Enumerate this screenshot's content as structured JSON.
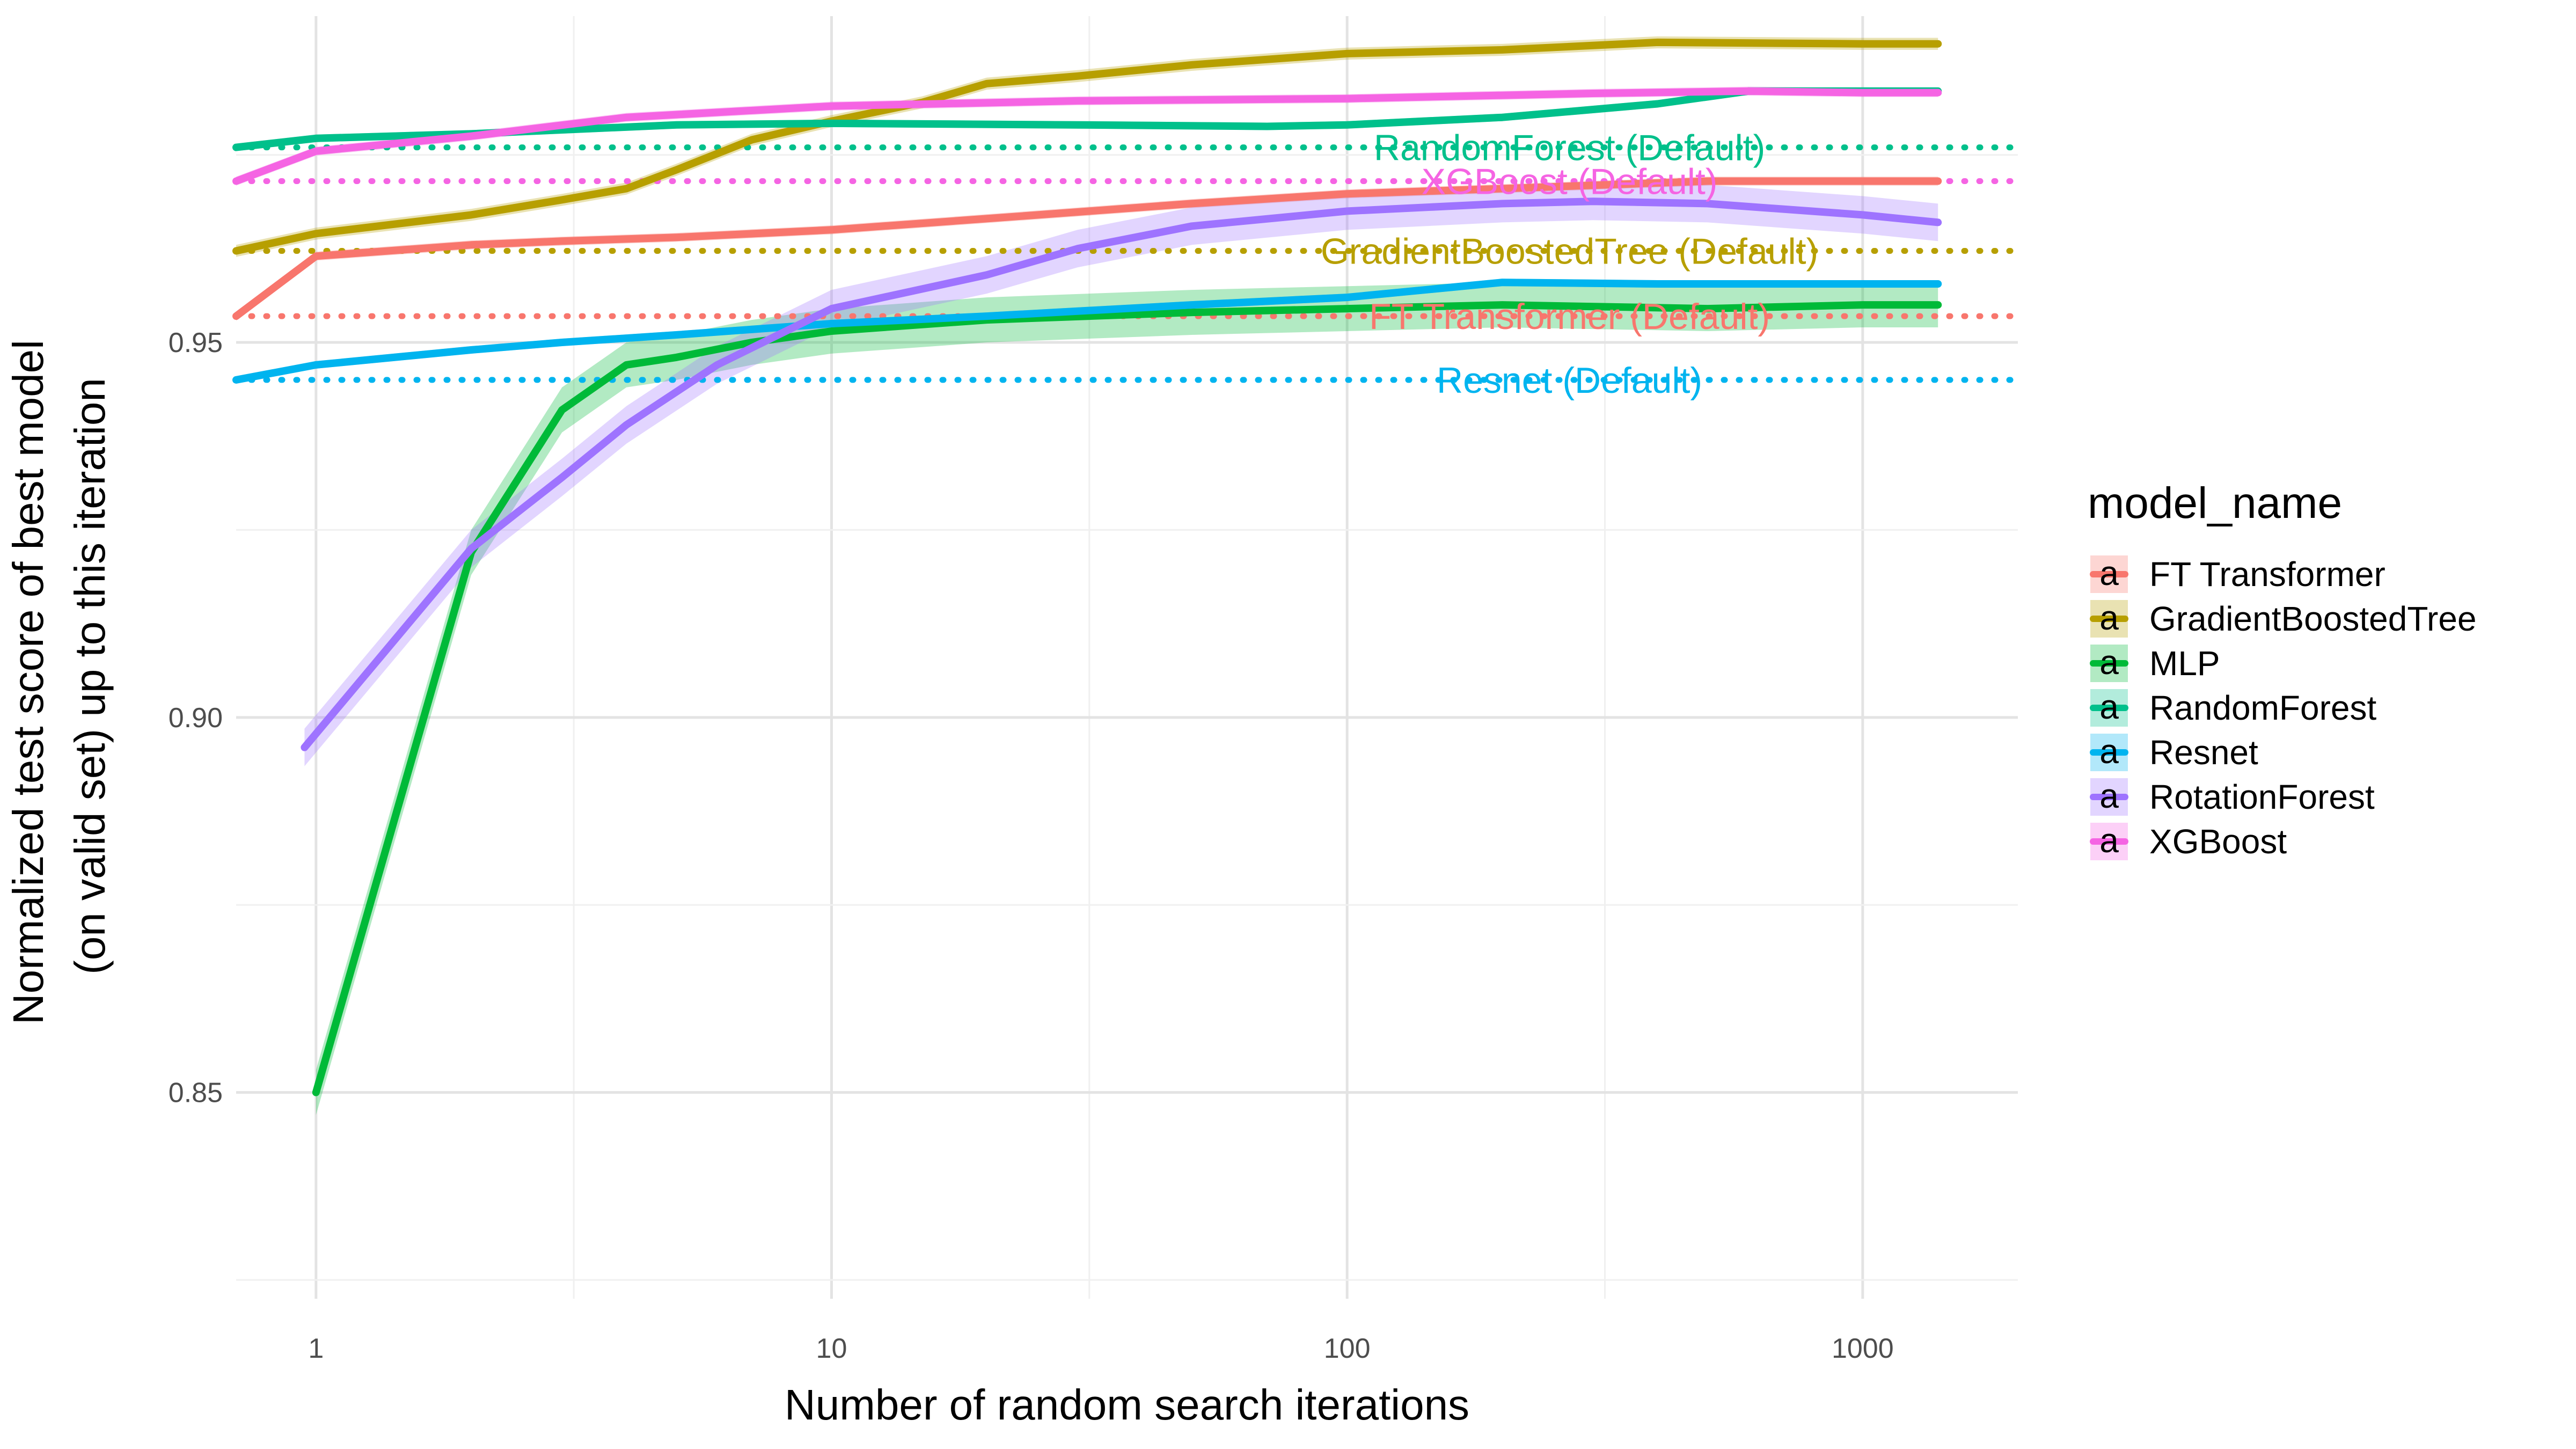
{
  "chart_data": {
    "type": "line",
    "xlabel": "Number of random search iterations",
    "ylabel_lines": [
      "Normalized test score of best model",
      "(on valid set) up to this iteration"
    ],
    "x_scale": "log",
    "xlim": [
      0.7,
      2000
    ],
    "ylim": [
      0.8225,
      0.9935
    ],
    "x_ticks": [
      {
        "value": 1,
        "label": "1"
      },
      {
        "value": 10,
        "label": "10"
      },
      {
        "value": 100,
        "label": "100"
      },
      {
        "value": 1000,
        "label": "1000"
      }
    ],
    "y_ticks": [
      {
        "value": 0.85,
        "label": "0.85"
      },
      {
        "value": 0.9,
        "label": "0.90"
      },
      {
        "value": 0.95,
        "label": "0.95"
      }
    ],
    "legend": {
      "title": "model_name",
      "position": "right",
      "glyph": "a"
    },
    "grid": true,
    "series": [
      {
        "name": "FT Transformer",
        "color": "#F8766D",
        "band_halfwidth": 0.0006,
        "default": {
          "value": 0.9535,
          "label": "FT Transformer (Default)",
          "label_x": 270
        },
        "x": [
          0.7,
          1,
          2,
          3,
          5,
          10,
          20,
          50,
          100,
          200,
          500,
          1000,
          1400
        ],
        "y": [
          0.9535,
          0.9615,
          0.963,
          0.9635,
          0.964,
          0.965,
          0.9665,
          0.9685,
          0.9698,
          0.9705,
          0.9715,
          0.9715,
          0.9715
        ]
      },
      {
        "name": "GradientBoostedTree",
        "color": "#B79F00",
        "band_halfwidth": 0.0008,
        "default": {
          "value": 0.9622,
          "label": "GradientBoostedTree (Default)",
          "label_x": 270
        },
        "x": [
          0.7,
          1,
          2,
          3,
          4,
          5,
          7,
          10,
          15,
          20,
          30,
          50,
          100,
          200,
          400,
          1000,
          1400
        ],
        "y": [
          0.9622,
          0.9645,
          0.967,
          0.969,
          0.9705,
          0.973,
          0.977,
          0.9795,
          0.982,
          0.9845,
          0.9855,
          0.987,
          0.9885,
          0.989,
          0.99,
          0.9898,
          0.9898
        ]
      },
      {
        "name": "MLP",
        "color": "#00BA38",
        "band_halfwidth": 0.003,
        "x": [
          1,
          2,
          3,
          4,
          5,
          7,
          10,
          20,
          50,
          100,
          200,
          500,
          1000,
          1400
        ],
        "y": [
          0.85,
          0.922,
          0.941,
          0.947,
          0.948,
          0.95,
          0.9515,
          0.953,
          0.954,
          0.9545,
          0.955,
          0.9545,
          0.955,
          0.955
        ]
      },
      {
        "name": "RandomForest",
        "color": "#00C08B",
        "band_halfwidth": 0.0005,
        "default": {
          "value": 0.976,
          "label": "RandomForest (Default)",
          "label_x": 270
        },
        "x": [
          0.7,
          1,
          2,
          5,
          10,
          30,
          70,
          100,
          200,
          400,
          600,
          1000,
          1400
        ],
        "y": [
          0.976,
          0.9772,
          0.9778,
          0.979,
          0.9792,
          0.979,
          0.9788,
          0.979,
          0.98,
          0.9818,
          0.9835,
          0.9835,
          0.9835
        ]
      },
      {
        "name": "Resnet",
        "color": "#00B4EF",
        "band_halfwidth": 0.0005,
        "default": {
          "value": 0.945,
          "label": "Resnet (Default)",
          "label_x": 270
        },
        "x": [
          0.7,
          1,
          2,
          3,
          5,
          10,
          20,
          50,
          100,
          200,
          400,
          1000,
          1400
        ],
        "y": [
          0.945,
          0.947,
          0.949,
          0.95,
          0.951,
          0.9525,
          0.9535,
          0.955,
          0.956,
          0.958,
          0.9578,
          0.9578,
          0.9578
        ]
      },
      {
        "name": "RotationForest",
        "color": "#9E73FF",
        "band_halfwidth": 0.0025,
        "x": [
          0.95,
          2,
          3,
          4,
          6,
          10,
          20,
          30,
          50,
          100,
          200,
          300,
          500,
          1000,
          1400
        ],
        "y": [
          0.896,
          0.9225,
          0.932,
          0.939,
          0.947,
          0.9545,
          0.959,
          0.9625,
          0.9655,
          0.9675,
          0.9685,
          0.9688,
          0.9685,
          0.967,
          0.966
        ]
      },
      {
        "name": "XGBoost",
        "color": "#F564E3",
        "band_halfwidth": 0.0006,
        "default": {
          "value": 0.9715,
          "label": "XGBoost (Default)",
          "label_x": 270
        },
        "x": [
          0.7,
          1,
          2,
          4,
          10,
          30,
          100,
          300,
          600,
          1000,
          1400
        ],
        "y": [
          0.9715,
          0.9755,
          0.9775,
          0.98,
          0.9815,
          0.9822,
          0.9825,
          0.9832,
          0.9835,
          0.9833,
          0.9833
        ]
      }
    ]
  }
}
